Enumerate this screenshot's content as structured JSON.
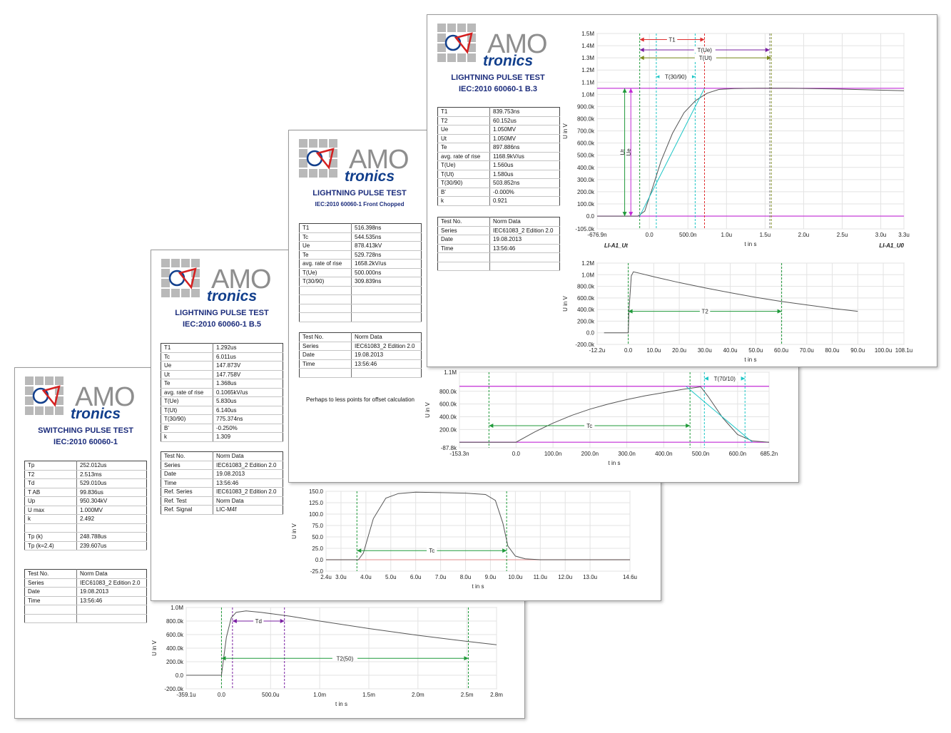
{
  "colors": {
    "grid": "#e3e3e3",
    "magenta": "#c22bd6",
    "green": "#1f9a3a",
    "purple": "#7a1fa2",
    "red": "#e03030",
    "cyan": "#1cc6c6",
    "olive": "#7a8a1a",
    "curve": "#555555",
    "title": "#1c2d7c",
    "logo_blue": "#123f8c",
    "logo_red": "#d42020"
  },
  "cards": [
    {
      "id": "switching",
      "logo": {
        "amo": "AMO",
        "tronics": "tronics"
      },
      "title": "SWITCHING PULSE TEST",
      "subtitle": "IEC:2010 60060-1",
      "params": [
        [
          "Tp",
          "252.012us"
        ],
        [
          "T2",
          "2.513ms"
        ],
        [
          "Td",
          "529.010us"
        ],
        [
          "T AB",
          "99.836us"
        ],
        [
          "Up",
          "950.304kV"
        ],
        [
          "U max",
          "1.000MV"
        ],
        [
          "k",
          "2.492"
        ],
        [
          "",
          ""
        ],
        [
          "Tp (k)",
          "248.788us"
        ],
        [
          "Tp (k=2.4)",
          "239.607us"
        ]
      ],
      "info": [
        [
          "Test No.",
          "Norm Data"
        ],
        [
          "Series",
          "IEC61083_2 Edition 2.0"
        ],
        [
          "Date",
          "19.08.2013"
        ],
        [
          "Time",
          "13:56:46"
        ],
        [
          "",
          ""
        ],
        [
          "",
          ""
        ]
      ]
    },
    {
      "id": "b5",
      "logo": {
        "amo": "AMO",
        "tronics": "tronics"
      },
      "title": "LIGHTNING PULSE TEST",
      "subtitle": "IEC:2010 60060-1 B.5",
      "params": [
        [
          "T1",
          "1.292us"
        ],
        [
          "Tc",
          "6.011us"
        ],
        [
          "Ue",
          "147.873V"
        ],
        [
          "Ut",
          "147.758V"
        ],
        [
          "Te",
          "1.368us"
        ],
        [
          "avg. rate of rise",
          "0.1065kV/us"
        ],
        [
          "T(Ue)",
          "5.830us"
        ],
        [
          "T(Ut)",
          "6.140us"
        ],
        [
          "T(30/90)",
          "775.374ns"
        ],
        [
          "B'",
          "-0.250%"
        ],
        [
          "k",
          "1.309"
        ]
      ],
      "info": [
        [
          "Test No.",
          "Norm Data"
        ],
        [
          "Series",
          "IEC61083_2 Edition 2.0"
        ],
        [
          "Date",
          "19.08.2013"
        ],
        [
          "Time",
          "13:56:46"
        ],
        [
          "Ref. Series",
          "IEC61083_2 Edition 2.0"
        ],
        [
          "Ref. Test",
          "Norm Data"
        ],
        [
          "Ref. Signal",
          "LIC-M4f"
        ]
      ]
    },
    {
      "id": "chopped",
      "logo": {
        "amo": "AMO",
        "tronics": "tronics"
      },
      "title": "LIGHTNING PULSE TEST",
      "subtitle": "IEC:2010 60060-1 Front Chopped",
      "params": [
        [
          "T1",
          "516.398ns"
        ],
        [
          "Tc",
          "544.535ns"
        ],
        [
          "Ue",
          "878.413kV"
        ],
        [
          "Te",
          "529.728ns"
        ],
        [
          "avg. rate of rise",
          "1658.2kV/us"
        ],
        [
          "T(Ue)",
          "500.000ns"
        ],
        [
          "T(30/90)",
          "309.839ns"
        ],
        [
          "",
          ""
        ],
        [
          "",
          ""
        ],
        [
          "",
          ""
        ],
        [
          "",
          ""
        ]
      ],
      "info": [
        [
          "Test No.",
          "Norm Data"
        ],
        [
          "Series",
          "IEC61083_2 Edition 2.0"
        ],
        [
          "Date",
          "19.08.2013"
        ],
        [
          "Time",
          "13:56:46"
        ],
        [
          "",
          ""
        ]
      ],
      "note": "Perhaps to less points for offset calculation"
    },
    {
      "id": "b3",
      "logo": {
        "amo": "AMO",
        "tronics": "tronics"
      },
      "title": "LIGHTNING PULSE TEST",
      "subtitle": "IEC:2010 60060-1 B.3",
      "params": [
        [
          "T1",
          "839.753ns"
        ],
        [
          "T2",
          "60.152us"
        ],
        [
          "Ue",
          "1.050MV"
        ],
        [
          "Ut",
          "1.050MV"
        ],
        [
          "Te",
          "897.886ns"
        ],
        [
          "avg. rate of rise",
          "1168.9kV/us"
        ],
        [
          "T(Ue)",
          "1.560us"
        ],
        [
          "T(Ut)",
          "1.580us"
        ],
        [
          "T(30/90)",
          "503.852ns"
        ],
        [
          "B'",
          "-0.000%"
        ],
        [
          "k",
          "0.921"
        ]
      ],
      "info": [
        [
          "Test No.",
          "Norm Data"
        ],
        [
          "Series",
          "IEC61083_2 Edition 2.0"
        ],
        [
          "Date",
          "19.08.2013"
        ],
        [
          "Time",
          "13:56:46"
        ],
        [
          "",
          ""
        ],
        [
          "",
          ""
        ]
      ]
    }
  ],
  "chart_data": [
    {
      "id": "switching-impulse",
      "type": "line",
      "xlabel": "t in s",
      "ylabel": "U in V",
      "x_ticks": [
        "-359.1u",
        "0.0",
        "500.0u",
        "1.0m",
        "1.5m",
        "2.0m",
        "2.5m",
        "2.8m"
      ],
      "x_tick_values": [
        -0.0003591,
        0,
        0.0005,
        0.001,
        0.0015,
        0.002,
        0.0025,
        0.0028
      ],
      "y_ticks": [
        "1.0M",
        "800.0k",
        "600.0k",
        "400.0k",
        "200.0k",
        "0.0",
        "-200.0k"
      ],
      "y_tick_values": [
        1000000,
        800000,
        600000,
        400000,
        200000,
        0,
        -200000
      ],
      "xlim": [
        -0.0003591,
        0.0028
      ],
      "ylim": [
        -200000,
        1000000
      ],
      "series": [
        {
          "x": [
            -0.0003591,
            0,
            5e-05,
            0.0001,
            0.00015,
            0.00025,
            0.0004,
            0.0007,
            0.001,
            0.0015,
            0.002,
            0.0025,
            0.0028
          ],
          "y": [
            0,
            0,
            560000,
            850000,
            930000,
            950000,
            930000,
            870000,
            800000,
            690000,
            590000,
            500000,
            450000
          ]
        }
      ],
      "markers": [
        {
          "label": "Td",
          "x1": 0.000112,
          "x2": 0.000641,
          "y": 800000
        },
        {
          "label": "T2(50)",
          "x1": 0,
          "x2": 0.002513,
          "y": 250000
        }
      ]
    },
    {
      "id": "b5-impulse",
      "type": "line",
      "xlabel": "t in s",
      "ylabel": "U in V",
      "x_ticks": [
        "2.4u",
        "3.0u",
        "4.0u",
        "5.0u",
        "6.0u",
        "7.0u",
        "8.0u",
        "9.0u",
        "10.0u",
        "11.0u",
        "12.0u",
        "13.0u",
        "14.6u"
      ],
      "x_tick_values": [
        2.4,
        3,
        4,
        5,
        6,
        7,
        8,
        9,
        10,
        11,
        12,
        13,
        14.6
      ],
      "y_ticks": [
        "150.0",
        "125.0",
        "100.0",
        "75.0",
        "50.0",
        "25.0",
        "0.0",
        "-25.0"
      ],
      "y_tick_values": [
        150,
        125,
        100,
        75,
        50,
        25,
        0,
        -25
      ],
      "xlim": [
        2.4,
        14.6
      ],
      "ylim": [
        -25,
        150
      ],
      "series": [
        {
          "x": [
            2.4,
            3.7,
            3.9,
            4.3,
            4.8,
            5.3,
            6,
            7,
            8,
            8.8,
            9.2,
            9.5,
            9.7,
            10,
            10.4,
            11,
            14.6
          ],
          "y": [
            0,
            0,
            15,
            90,
            135,
            145,
            148,
            147,
            146,
            143,
            130,
            80,
            30,
            8,
            2,
            0,
            0
          ]
        }
      ],
      "markers": [
        {
          "label": "Tc",
          "x1": 3.64,
          "x2": 9.65,
          "y": 20
        }
      ]
    },
    {
      "id": "chopped-impulse",
      "type": "line",
      "xlabel": "t in s",
      "ylabel": "U in V",
      "x_ticks": [
        "-153.3n",
        "0.0",
        "100.0n",
        "200.0n",
        "300.0n",
        "400.0n",
        "500.0n",
        "600.0n",
        "685.2n"
      ],
      "x_tick_values": [
        -153.3,
        0,
        100,
        200,
        300,
        400,
        500,
        600,
        685.2
      ],
      "y_ticks": [
        "1.1M",
        "800.0k",
        "600.0k",
        "400.0k",
        "200.0k",
        "-87.8k"
      ],
      "y_tick_values": [
        1100000,
        800000,
        600000,
        400000,
        200000,
        -87800
      ],
      "xlim": [
        -153.3,
        685.2
      ],
      "ylim": [
        -87800,
        1100000
      ],
      "series": [
        {
          "x": [
            -153.3,
            0,
            50,
            100,
            150,
            200,
            250,
            300,
            350,
            400,
            450,
            500,
            520,
            560,
            600,
            640,
            685.2
          ],
          "y": [
            0,
            0,
            160000,
            300000,
            420000,
            520000,
            600000,
            670000,
            730000,
            780000,
            830000,
            870000,
            720000,
            380000,
            120000,
            20000,
            0
          ]
        }
      ],
      "markers": [
        {
          "label": "Tc",
          "x1": -73.4,
          "x2": 471.1,
          "y": 260000
        },
        {
          "label": "T(70/10)",
          "x1": 510,
          "x2": 620,
          "y": 1000000
        }
      ]
    },
    {
      "id": "b3-front",
      "type": "line",
      "xlabel": "t in s",
      "ylabel": "U in V",
      "x_ticks": [
        "-676.9n",
        "0.0",
        "500.0n",
        "1.0u",
        "1.5u",
        "2.0u",
        "2.5u",
        "3.0u",
        "3.3u"
      ],
      "x_tick_values": [
        -676.9,
        0,
        500,
        1000,
        1500,
        2000,
        2500,
        3000,
        3300
      ],
      "y_ticks": [
        "1.5M",
        "1.4M",
        "1.3M",
        "1.2M",
        "1.1M",
        "1.0M",
        "900.0k",
        "800.0k",
        "700.0k",
        "600.0k",
        "500.0k",
        "400.0k",
        "300.0k",
        "200.0k",
        "100.0k",
        "0.0",
        "-105.0k"
      ],
      "y_tick_values": [
        1500000,
        1400000,
        1300000,
        1200000,
        1100000,
        1000000,
        900000,
        800000,
        700000,
        600000,
        500000,
        400000,
        300000,
        200000,
        100000,
        0,
        -105000
      ],
      "xlim": [
        -676.9,
        3300
      ],
      "ylim": [
        -105000,
        1500000
      ],
      "legend_left": "LI-A1_Ut",
      "legend_right": "LI-A1_U0",
      "series": [
        {
          "x": [
            -676.9,
            -150,
            -60,
            50,
            150,
            300,
            450,
            600,
            750,
            900,
            1100,
            1400,
            1800,
            2400,
            3300
          ],
          "y": [
            0,
            0,
            40000,
            250000,
            450000,
            680000,
            850000,
            950000,
            1010000,
            1040000,
            1048000,
            1050000,
            1050000,
            1045000,
            1030000
          ]
        }
      ],
      "markers": [
        {
          "label": "T1",
          "x1": -125,
          "x2": 715,
          "y": 1450000
        },
        {
          "label": "T(Ue)",
          "x1": -125,
          "x2": 1560,
          "y": 1365000
        },
        {
          "label": "T(Ut)",
          "x1": -125,
          "x2": 1580,
          "y": 1300000
        },
        {
          "label": "T(30/90)",
          "x1": 90,
          "x2": 594,
          "y": 1145000
        },
        {
          "label": "Ut",
          "x": -320,
          "y1": 0,
          "y2": 1050000
        },
        {
          "label": "Ue",
          "x": -240,
          "y1": 0,
          "y2": 1050000
        }
      ]
    },
    {
      "id": "b3-tail",
      "type": "line",
      "xlabel": "t in s",
      "ylabel": "U in V",
      "x_ticks": [
        "-12.2u",
        "0.0",
        "10.0u",
        "20.0u",
        "30.0u",
        "40.0u",
        "50.0u",
        "60.0u",
        "70.0u",
        "80.0u",
        "90.0u",
        "100.0u",
        "108.1u"
      ],
      "x_tick_values": [
        -12.2,
        0,
        10,
        20,
        30,
        40,
        50,
        60,
        70,
        80,
        90,
        100,
        108.1
      ],
      "y_ticks": [
        "1.2M",
        "1.0M",
        "800.0k",
        "600.0k",
        "400.0k",
        "200.0k",
        "0.0",
        "-200.0k"
      ],
      "y_tick_values": [
        1200000,
        1000000,
        800000,
        600000,
        400000,
        200000,
        0,
        -200000
      ],
      "xlim": [
        -12.2,
        108.1
      ],
      "ylim": [
        -200000,
        1200000
      ],
      "series": [
        {
          "x": [
            -9.5,
            0,
            0.3,
            1.2,
            2,
            5,
            10,
            20,
            30,
            40,
            50,
            60,
            70,
            80,
            90
          ],
          "y": [
            0,
            0,
            400000,
            980000,
            1050000,
            1020000,
            965000,
            865000,
            775000,
            690000,
            610000,
            540000,
            480000,
            420000,
            370000
          ]
        }
      ],
      "markers": [
        {
          "label": "T2",
          "x1": 0,
          "x2": 60.152,
          "y": 370000
        }
      ]
    }
  ]
}
